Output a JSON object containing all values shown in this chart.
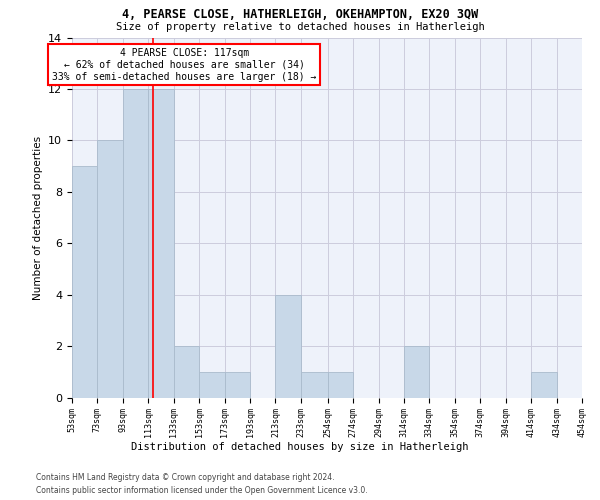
{
  "title1": "4, PEARSE CLOSE, HATHERLEIGH, OKEHAMPTON, EX20 3QW",
  "title2": "Size of property relative to detached houses in Hatherleigh",
  "xlabel": "Distribution of detached houses by size in Hatherleigh",
  "ylabel": "Number of detached properties",
  "footnote1": "Contains HM Land Registry data © Crown copyright and database right 2024.",
  "footnote2": "Contains public sector information licensed under the Open Government Licence v3.0.",
  "annotation_title": "4 PEARSE CLOSE: 117sqm",
  "annotation_line1": "← 62% of detached houses are smaller (34)",
  "annotation_line2": "33% of semi-detached houses are larger (18) →",
  "property_size": 117,
  "bar_color": "#c8d8e8",
  "bar_edge_color": "#aabbcc",
  "vline_color": "red",
  "annotation_box_color": "red",
  "grid_color": "#ccccdd",
  "bg_color": "#eef2fa",
  "bins": [
    53,
    73,
    93,
    113,
    133,
    153,
    173,
    193,
    213,
    233,
    254,
    274,
    294,
    314,
    334,
    354,
    374,
    394,
    414,
    434,
    454
  ],
  "counts": [
    9,
    10,
    12,
    12,
    2,
    1,
    1,
    0,
    4,
    1,
    1,
    0,
    0,
    2,
    0,
    0,
    0,
    0,
    1,
    0
  ],
  "ylim": [
    0,
    14
  ],
  "yticks": [
    0,
    2,
    4,
    6,
    8,
    10,
    12,
    14
  ]
}
